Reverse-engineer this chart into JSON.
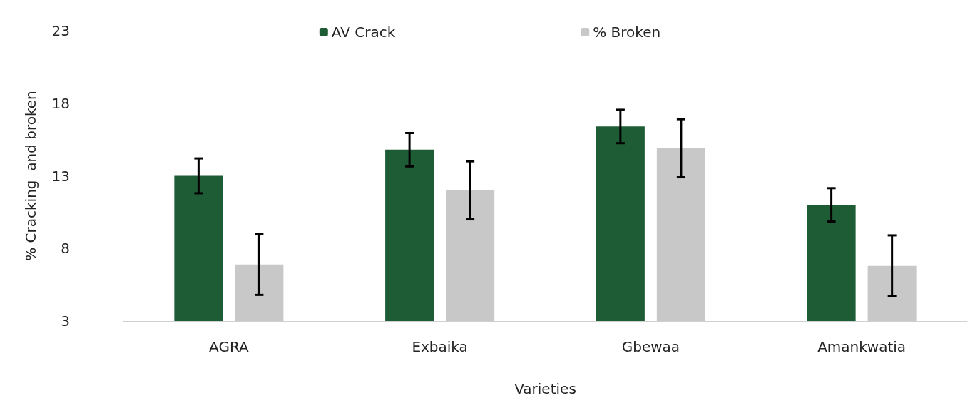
{
  "chart_data": {
    "type": "bar",
    "xlabel": "Varieties",
    "ylabel": "% Cracking  and broken",
    "categories": [
      "AGRA",
      "Exbaika",
      "Gbewaa",
      "Amankwatia"
    ],
    "series": [
      {
        "name": "AV Crack",
        "color": "#1e5c36",
        "values": [
          13.0,
          14.8,
          16.4,
          11.0
        ],
        "errors": [
          1.2,
          1.15,
          1.15,
          1.15
        ]
      },
      {
        "name": "% Broken",
        "color": "#c8c8c8",
        "values": [
          6.9,
          12.0,
          14.9,
          6.8
        ],
        "errors": [
          2.1,
          2.0,
          2.0,
          2.1
        ]
      }
    ],
    "ylim": [
      3,
      23
    ],
    "yticks": [
      3,
      8,
      13,
      18,
      23
    ],
    "grid": false,
    "legend": "top"
  }
}
